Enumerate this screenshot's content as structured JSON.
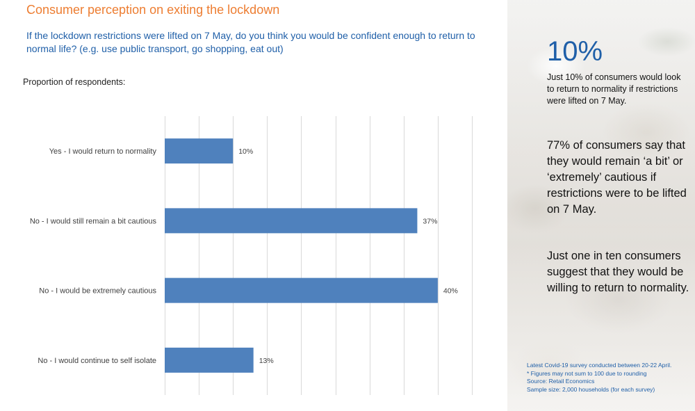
{
  "page": {
    "title": "Consumer perception on exiting the lockdown",
    "question": "If the lockdown restrictions were lifted on 7 May, do you think you would be confident enough to return to normal life? (e.g. use public transport, go shopping, eat out)",
    "axis_caption": "Proportion of respondents:"
  },
  "colors": {
    "title": "#ed7d31",
    "accent_blue": "#1f5fa8",
    "bar": "#4f81bd",
    "gridline": "#d9d9d9"
  },
  "chart_data": {
    "type": "bar",
    "orientation": "horizontal",
    "title": "",
    "xlabel": "",
    "ylabel": "Proportion of respondents:",
    "xlim": [
      0,
      45
    ],
    "grid": true,
    "grid_step": 5,
    "categories": [
      "Yes - I would return to normality",
      "No - I would still remain a bit cautious",
      "No - I would be extremely cautious",
      "No - I would continue to self isolate"
    ],
    "values": [
      10,
      37,
      40,
      13
    ],
    "value_labels": [
      "10%",
      "37%",
      "40%",
      "13%"
    ],
    "bar_color": "#4f81bd"
  },
  "sidebar": {
    "big_stat": "10%",
    "big_stat_desc": "Just 10% of consumers would look to return to normality if restrictions were lifted on 7 May.",
    "paragraph1": "77% of consumers say that they would remain ‘a bit’ or ‘extremely’ cautious if restrictions were to be lifted on 7 May.",
    "paragraph2": "Just one in ten consumers suggest that they would be willing to return to normality.",
    "notes": [
      "Latest Covid-19 survey conducted between 20-22 April.",
      "* Figures may not sum to 100 due to rounding",
      "Source: Retail Economics",
      "Sample size: 2,000 households (for each survey)"
    ]
  }
}
